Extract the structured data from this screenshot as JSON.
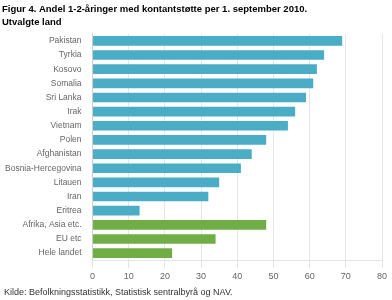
{
  "chart_data": {
    "type": "bar",
    "orientation": "horizontal",
    "title": "Figur 4. Andel 1-2-åringer med kontantstøtte per 1. september 2010.",
    "subtitle": "Utvalgte land",
    "annotations": [
      "Kilde: Befolkningsstatistikk, Statistisk sentralbyrå og NAV."
    ],
    "categories": [
      "Pakistan",
      "Tyrkia",
      "Kosovo",
      "Somalia",
      "Sri Lanka",
      "Irak",
      "Vietnam",
      "Polen",
      "Afghanistan",
      "Bosnia-Hercegovina",
      "Litauen",
      "Iran",
      "Eritrea",
      "Afrika, Asia etc.",
      "EU etc",
      "Hele landet"
    ],
    "values": [
      69,
      64,
      62,
      61,
      59,
      56,
      54,
      48,
      44,
      41,
      35,
      32,
      13,
      48,
      34,
      22
    ],
    "colors": [
      "#4bacc6",
      "#4bacc6",
      "#4bacc6",
      "#4bacc6",
      "#4bacc6",
      "#4bacc6",
      "#4bacc6",
      "#4bacc6",
      "#4bacc6",
      "#4bacc6",
      "#4bacc6",
      "#4bacc6",
      "#4bacc6",
      "#70ad47",
      "#70ad47",
      "#70ad47"
    ],
    "xlim": [
      0,
      80
    ],
    "xticks": [
      0,
      10,
      20,
      30,
      40,
      50,
      60,
      70,
      80
    ],
    "grid": true
  }
}
